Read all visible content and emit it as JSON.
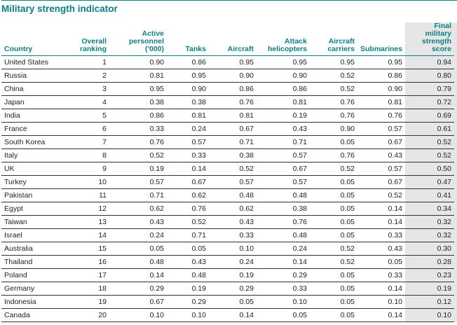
{
  "title": "Military strength indicator",
  "colors": {
    "accent": "#0b7f86",
    "shade": "#e6e6e6"
  },
  "headers": [
    "Country",
    "Overall ranking",
    "Active personnel ('000)",
    "Tanks",
    "Aircraft",
    "Attack helicopters",
    "Aircraft carriers",
    "Submarines",
    "Final military strength score"
  ],
  "rows": [
    [
      "United States",
      "1",
      "0.90",
      "0.86",
      "0.95",
      "0.95",
      "0.95",
      "0.95",
      "0.94"
    ],
    [
      "Russia",
      "2",
      "0.81",
      "0.95",
      "0.90",
      "0.90",
      "0.52",
      "0.86",
      "0.80"
    ],
    [
      "China",
      "3",
      "0.95",
      "0.90",
      "0.86",
      "0.86",
      "0.52",
      "0.90",
      "0.79"
    ],
    [
      "Japan",
      "4",
      "0.38",
      "0.38",
      "0.76",
      "0.81",
      "0.76",
      "0.81",
      "0.72"
    ],
    [
      "India",
      "5",
      "0.86",
      "0.81",
      "0.81",
      "0.19",
      "0.76",
      "0.76",
      "0.69"
    ],
    [
      "France",
      "6",
      "0.33",
      "0.24",
      "0.67",
      "0.43",
      "0.90",
      "0.57",
      "0.61"
    ],
    [
      "South Korea",
      "7",
      "0.76",
      "0.57",
      "0.71",
      "0.71",
      "0.05",
      "0.67",
      "0.52"
    ],
    [
      "Italy",
      "8",
      "0.52",
      "0.33",
      "0.38",
      "0.57",
      "0.76",
      "0.43",
      "0.52"
    ],
    [
      "UK",
      "9",
      "0.19",
      "0.14",
      "0.52",
      "0.67",
      "0.52",
      "0.57",
      "0.50"
    ],
    [
      "Turkey",
      "10",
      "0.57",
      "0.67",
      "0.57",
      "0.57",
      "0.05",
      "0.67",
      "0.47"
    ],
    [
      "Pakistan",
      "11",
      "0.71",
      "0.62",
      "0.48",
      "0.48",
      "0.05",
      "0.52",
      "0.41"
    ],
    [
      "Egypt",
      "12",
      "0.62",
      "0.76",
      "0.62",
      "0.38",
      "0.05",
      "0.14",
      "0.34"
    ],
    [
      "Taiwan",
      "13",
      "0.43",
      "0.52",
      "0.43",
      "0.76",
      "0.05",
      "0.14",
      "0.32"
    ],
    [
      "Israel",
      "14",
      "0.24",
      "0.71",
      "0.33",
      "0.48",
      "0.05",
      "0.33",
      "0.32"
    ],
    [
      "Australia",
      "15",
      "0.05",
      "0.05",
      "0.10",
      "0.24",
      "0.52",
      "0.43",
      "0.30"
    ],
    [
      "Thailand",
      "16",
      "0.48",
      "0.43",
      "0.24",
      "0.14",
      "0.52",
      "0.05",
      "0.28"
    ],
    [
      "Poland",
      "17",
      "0.14",
      "0.48",
      "0.19",
      "0.29",
      "0.05",
      "0.33",
      "0.23"
    ],
    [
      "Germany",
      "18",
      "0.29",
      "0.19",
      "0.29",
      "0.33",
      "0.05",
      "0.14",
      "0.19"
    ],
    [
      "Indonesia",
      "19",
      "0.67",
      "0.29",
      "0.05",
      "0.10",
      "0.05",
      "0.10",
      "0.12"
    ],
    [
      "Canada",
      "20",
      "0.10",
      "0.10",
      "0.14",
      "0.05",
      "0.05",
      "0.14",
      "0.10"
    ]
  ]
}
